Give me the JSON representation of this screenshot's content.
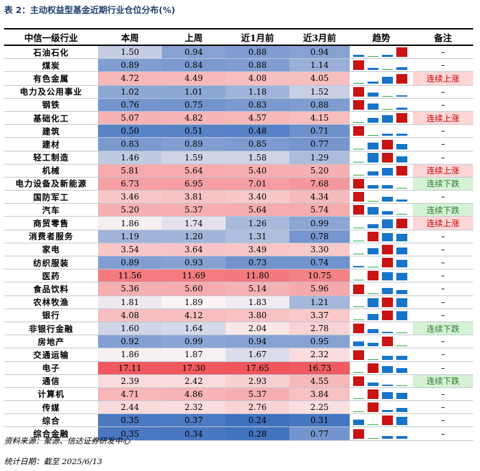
{
  "caption": "表 2：主动权益型基金近期行业仓位分布(%)",
  "headers": [
    "中信一级行业",
    "本周",
    "上周",
    "近1月前",
    "近3月前",
    "趋势",
    "备注"
  ],
  "colors": {
    "heat_low": "#3f71bf",
    "heat_mid": "#fbf3f3",
    "heat_high": "#f0565c",
    "trend_max": "#c81414",
    "trend_other": "#1874c9",
    "trend_min": "#2eaa4a"
  },
  "rows": [
    {
      "industry": "石油石化",
      "values": [
        "1.50",
        "0.94",
        "0.88",
        "0.94"
      ],
      "trend": [
        1.5,
        0.94,
        0.88,
        0.94
      ],
      "note": "–"
    },
    {
      "industry": "煤炭",
      "values": [
        "0.89",
        "0.84",
        "0.88",
        "1.14"
      ],
      "trend": [
        0.89,
        0.84,
        0.88,
        1.14
      ],
      "note": "–"
    },
    {
      "industry": "有色金属",
      "values": [
        "4.72",
        "4.49",
        "4.08",
        "4.05"
      ],
      "trend": [
        4.72,
        4.49,
        4.08,
        4.05
      ],
      "note": "连续上涨"
    },
    {
      "industry": "电力及公用事业",
      "values": [
        "1.02",
        "1.01",
        "1.18",
        "1.52"
      ],
      "trend": [
        1.02,
        1.01,
        1.18,
        1.52
      ],
      "note": "–"
    },
    {
      "industry": "钢铁",
      "values": [
        "0.76",
        "0.75",
        "0.83",
        "0.88"
      ],
      "trend": [
        0.76,
        0.75,
        0.83,
        0.88
      ],
      "note": "–"
    },
    {
      "industry": "基础化工",
      "values": [
        "5.07",
        "4.82",
        "4.57",
        "4.15"
      ],
      "trend": [
        5.07,
        4.82,
        4.57,
        4.15
      ],
      "note": "连续上涨"
    },
    {
      "industry": "建筑",
      "values": [
        "0.50",
        "0.51",
        "0.48",
        "0.71"
      ],
      "trend": [
        0.5,
        0.51,
        0.48,
        0.71
      ],
      "note": "–"
    },
    {
      "industry": "建材",
      "values": [
        "0.83",
        "0.89",
        "0.85",
        "0.77"
      ],
      "trend": [
        0.83,
        0.89,
        0.85,
        0.77
      ],
      "note": "–"
    },
    {
      "industry": "轻工制造",
      "values": [
        "1.46",
        "1.59",
        "1.58",
        "1.29"
      ],
      "trend": [
        1.46,
        1.59,
        1.58,
        1.29
      ],
      "note": "–"
    },
    {
      "industry": "机械",
      "values": [
        "5.81",
        "5.64",
        "5.40",
        "5.20"
      ],
      "trend": [
        5.81,
        5.64,
        5.4,
        5.2
      ],
      "note": "连续上涨"
    },
    {
      "industry": "电力设备及新能源",
      "values": [
        "6.73",
        "6.95",
        "7.01",
        "7.68"
      ],
      "trend": [
        6.73,
        6.95,
        7.01,
        7.68
      ],
      "note": "连续下跌"
    },
    {
      "industry": "国防军工",
      "values": [
        "3.46",
        "3.81",
        "3.40",
        "4.34"
      ],
      "trend": [
        3.46,
        3.81,
        3.4,
        4.34
      ],
      "note": "–"
    },
    {
      "industry": "汽车",
      "values": [
        "5.20",
        "5.37",
        "5.64",
        "5.74"
      ],
      "trend": [
        5.2,
        5.37,
        5.64,
        5.74
      ],
      "note": "连续下跌"
    },
    {
      "industry": "商贸零售",
      "values": [
        "1.86",
        "1.74",
        "1.26",
        "0.99"
      ],
      "trend": [
        1.86,
        1.74,
        1.26,
        0.99
      ],
      "note": "连续上涨"
    },
    {
      "industry": "消费者服务",
      "values": [
        "1.19",
        "1.20",
        "1.31",
        "0.78"
      ],
      "trend": [
        1.19,
        1.2,
        1.31,
        0.78
      ],
      "note": "–"
    },
    {
      "industry": "家电",
      "values": [
        "3.54",
        "3.64",
        "3.49",
        "3.30"
      ],
      "trend": [
        3.54,
        3.64,
        3.49,
        3.3
      ],
      "note": "–"
    },
    {
      "industry": "纺织服装",
      "values": [
        "0.89",
        "0.93",
        "0.73",
        "0.74"
      ],
      "trend": [
        0.89,
        0.93,
        0.73,
        0.74
      ],
      "note": "–"
    },
    {
      "industry": "医药",
      "values": [
        "11.56",
        "11.69",
        "11.80",
        "10.75"
      ],
      "trend": [
        11.56,
        11.69,
        11.8,
        10.75
      ],
      "note": "–"
    },
    {
      "industry": "食品饮料",
      "values": [
        "5.36",
        "5.60",
        "5.14",
        "5.96"
      ],
      "trend": [
        5.36,
        5.6,
        5.14,
        5.96
      ],
      "note": "–"
    },
    {
      "industry": "农林牧渔",
      "values": [
        "1.81",
        "1.89",
        "1.83",
        "1.21"
      ],
      "trend": [
        1.81,
        1.89,
        1.83,
        1.21
      ],
      "note": "–"
    },
    {
      "industry": "银行",
      "values": [
        "4.08",
        "4.12",
        "3.80",
        "3.37"
      ],
      "trend": [
        4.08,
        4.12,
        3.8,
        3.37
      ],
      "note": "–"
    },
    {
      "industry": "非银行金融",
      "values": [
        "1.60",
        "1.64",
        "2.04",
        "2.78"
      ],
      "trend": [
        1.6,
        1.64,
        2.04,
        2.78
      ],
      "note": "连续下跌"
    },
    {
      "industry": "房地产",
      "values": [
        "0.92",
        "0.99",
        "0.94",
        "0.95"
      ],
      "trend": [
        0.92,
        0.99,
        0.94,
        0.95
      ],
      "note": "–"
    },
    {
      "industry": "交通运输",
      "values": [
        "1.86",
        "1.87",
        "1.67",
        "2.32"
      ],
      "trend": [
        1.86,
        1.87,
        1.67,
        2.32
      ],
      "note": "–"
    },
    {
      "industry": "电子",
      "values": [
        "17.11",
        "17.30",
        "17.65",
        "16.73"
      ],
      "trend": [
        17.11,
        17.3,
        17.65,
        16.73
      ],
      "note": "–"
    },
    {
      "industry": "通信",
      "values": [
        "2.39",
        "2.42",
        "2.93",
        "4.55"
      ],
      "trend": [
        2.39,
        2.42,
        2.93,
        4.55
      ],
      "note": "连续下跌"
    },
    {
      "industry": "计算机",
      "values": [
        "4.71",
        "4.86",
        "5.37",
        "3.84"
      ],
      "trend": [
        4.71,
        4.86,
        5.37,
        3.84
      ],
      "note": "–"
    },
    {
      "industry": "传媒",
      "values": [
        "2.44",
        "2.32",
        "2.76",
        "2.25"
      ],
      "trend": [
        2.44,
        2.32,
        2.76,
        2.25
      ],
      "note": "–"
    },
    {
      "industry": "综合",
      "values": [
        "0.35",
        "0.37",
        "0.24",
        "0.31"
      ],
      "trend": [
        0.35,
        0.37,
        0.24,
        0.31
      ],
      "note": "–"
    },
    {
      "industry": "综合金融",
      "values": [
        "0.35",
        "0.34",
        "0.28",
        "0.77"
      ],
      "trend": [
        0.35,
        0.34,
        0.28,
        0.77
      ],
      "note": "–"
    }
  ],
  "source": "资料来源：聚源、信达证券研发中心",
  "date_note": "统计日期：截至 2025/6/13"
}
